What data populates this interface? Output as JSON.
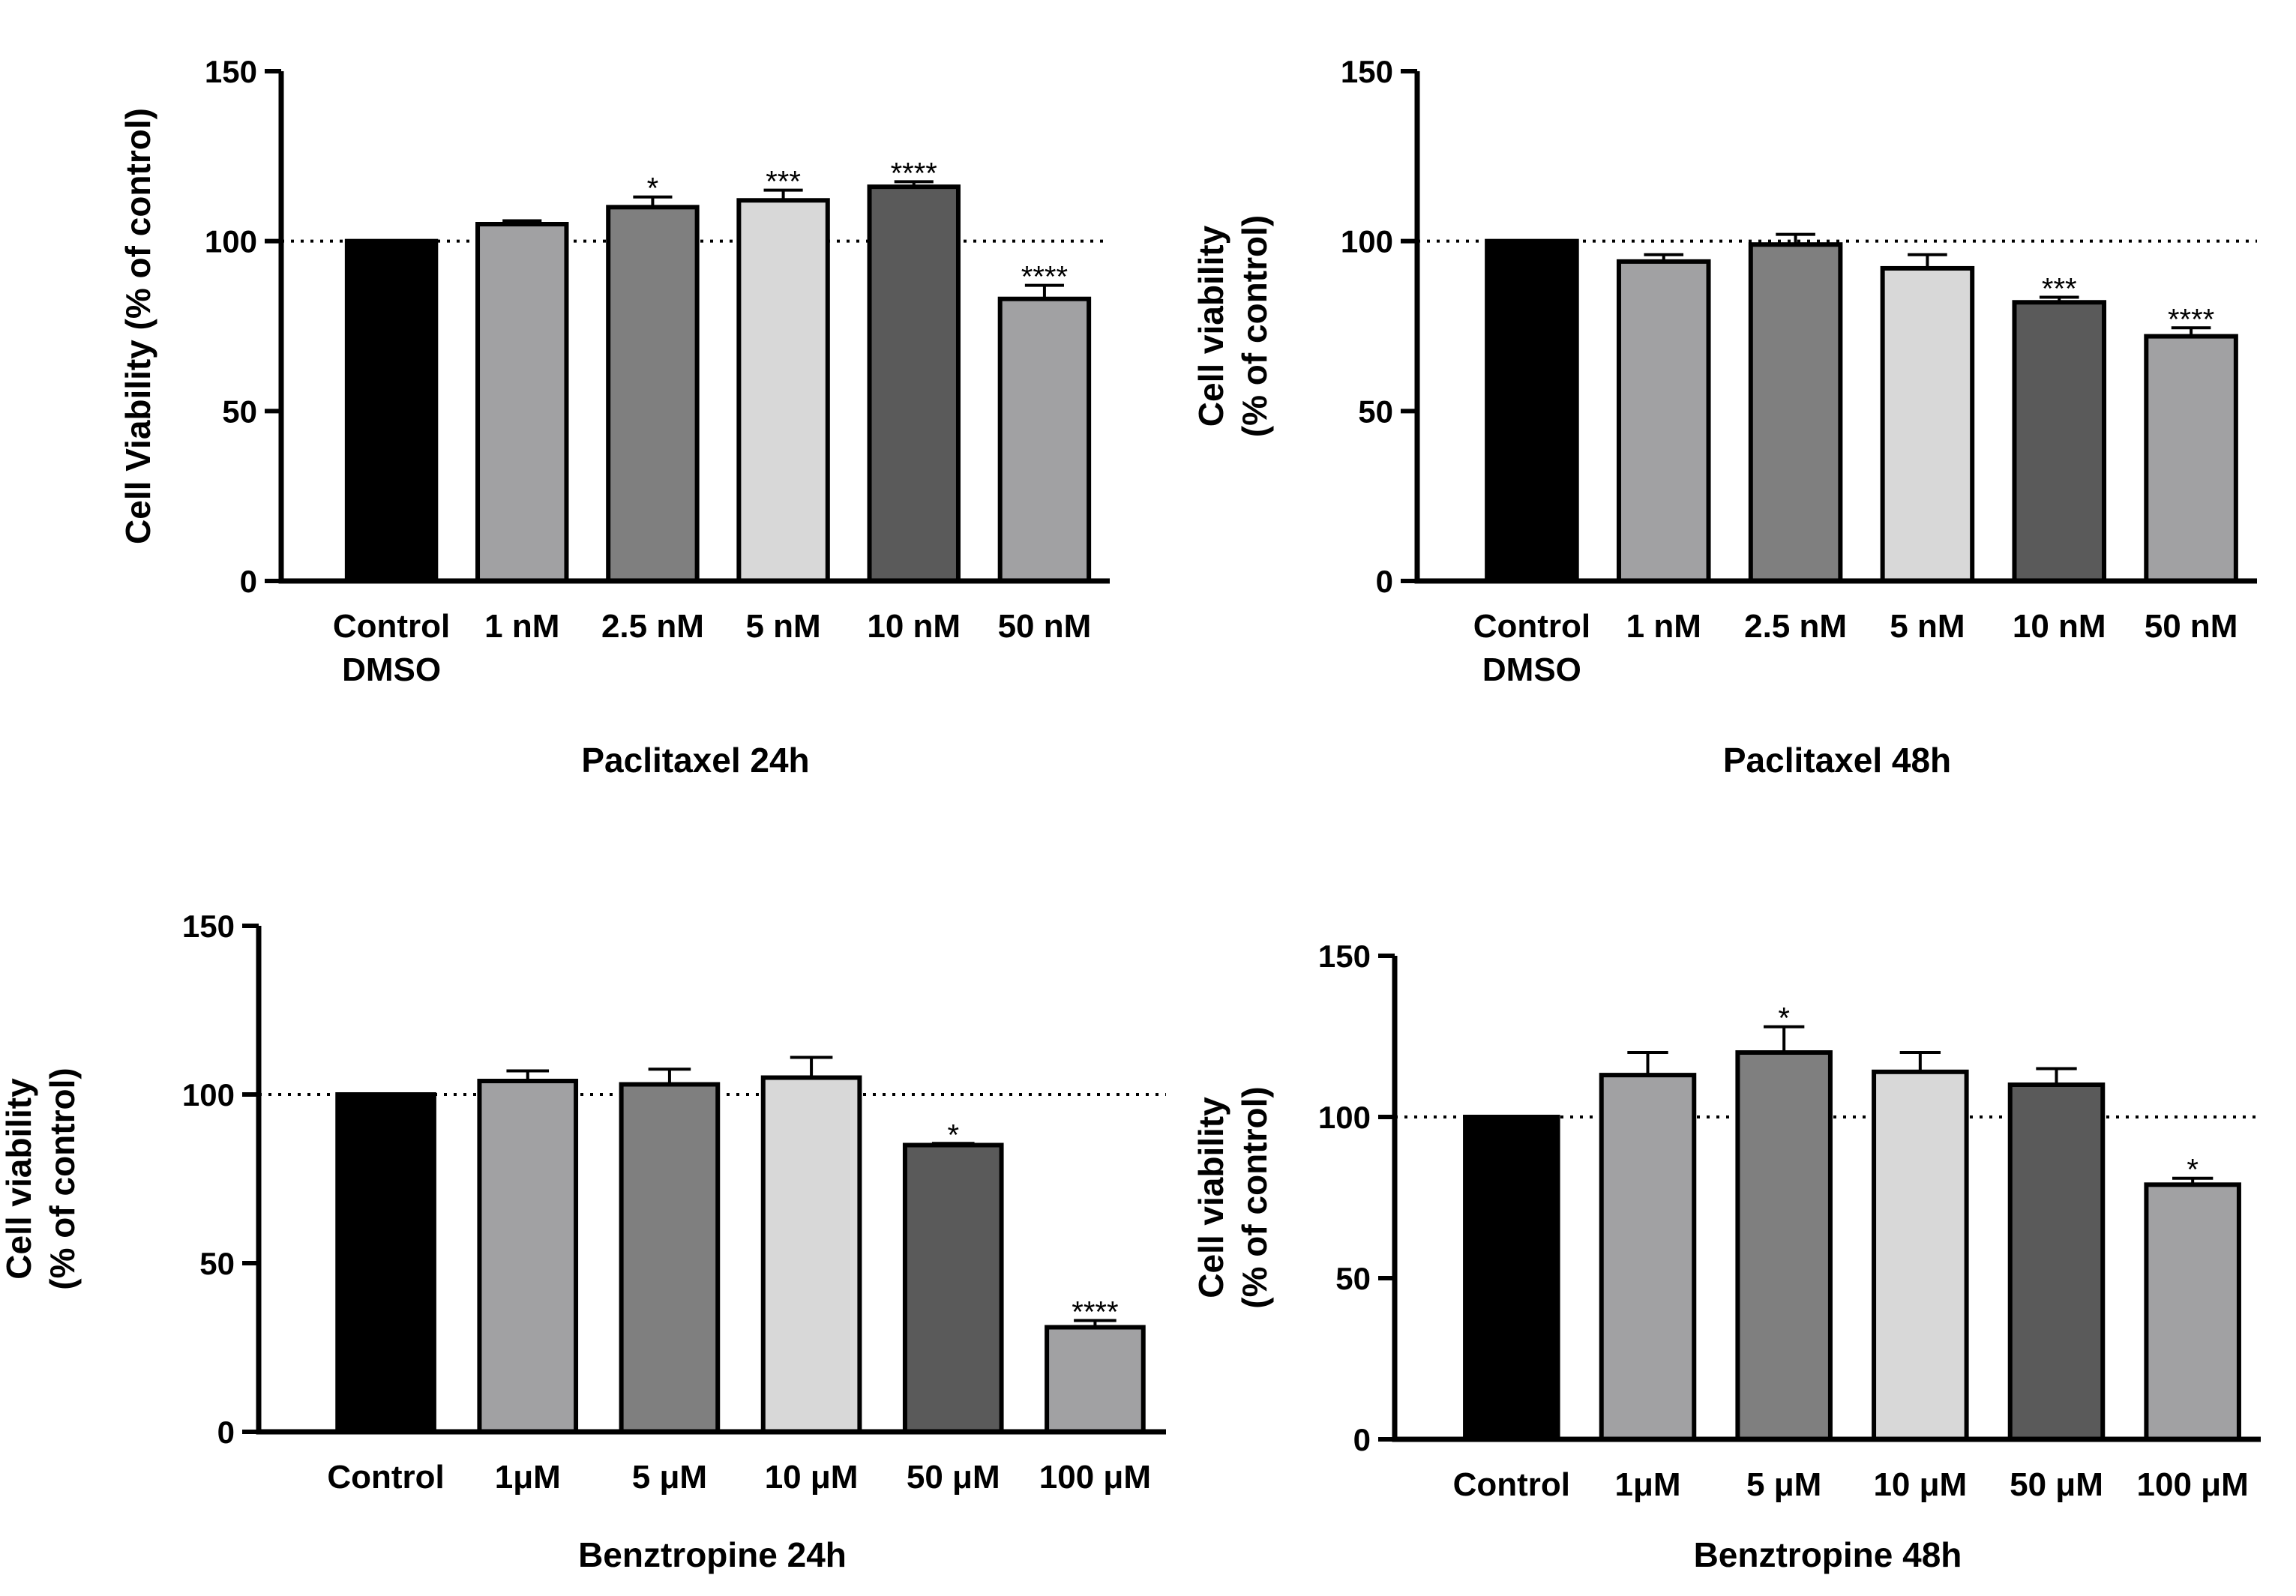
{
  "chart_data": [
    {
      "type": "bar",
      "title": "Paclitaxel 24h",
      "ylabel_lines": [
        "Cell Viability (% of control)"
      ],
      "xlabel": "",
      "ylim": [
        0,
        150
      ],
      "yticks": [
        "0",
        "50",
        "100",
        "150"
      ],
      "reference_line": 100,
      "categories": [
        [
          "Control",
          "DMSO"
        ],
        [
          "1 nM"
        ],
        [
          "2.5 nM"
        ],
        [
          "5 nM"
        ],
        [
          "10 nM"
        ],
        [
          "50 nM"
        ]
      ],
      "values": [
        100,
        105,
        110,
        112,
        116,
        83
      ],
      "errors": [
        0,
        1,
        3,
        3,
        1.5,
        4
      ],
      "significance": [
        "",
        "",
        "*",
        "***",
        "****",
        "****"
      ],
      "colors": [
        "#000000",
        "#a1a1a3",
        "#7f7f7f",
        "#d8d8d8",
        "#5a5a5a",
        "#a1a1a3"
      ]
    },
    {
      "type": "bar",
      "title": "Paclitaxel 48h",
      "ylabel_lines": [
        "Cell viability",
        "(% of control)"
      ],
      "xlabel": "",
      "ylim": [
        0,
        150
      ],
      "yticks": [
        "0",
        "50",
        "100",
        "150"
      ],
      "reference_line": 100,
      "categories": [
        [
          "Control",
          "DMSO"
        ],
        [
          "1 nM"
        ],
        [
          "2.5 nM"
        ],
        [
          "5 nM"
        ],
        [
          "10 nM"
        ],
        [
          "50 nM"
        ]
      ],
      "values": [
        100,
        94,
        99,
        92,
        82,
        72
      ],
      "errors": [
        0,
        2,
        3,
        4,
        1.5,
        2.5
      ],
      "significance": [
        "",
        "",
        "",
        "",
        "***",
        "****"
      ],
      "colors": [
        "#000000",
        "#a1a1a3",
        "#7f7f7f",
        "#d8d8d8",
        "#5a5a5a",
        "#a1a1a3"
      ]
    },
    {
      "type": "bar",
      "title": "Benztropine 24h",
      "ylabel_lines": [
        "Cell viability",
        "(% of control)"
      ],
      "xlabel": "",
      "ylim": [
        0,
        150
      ],
      "yticks": [
        "0",
        "50",
        "100",
        "150"
      ],
      "reference_line": 100,
      "categories": [
        [
          "Control"
        ],
        [
          "1μM"
        ],
        [
          "5 μM"
        ],
        [
          "10 μM"
        ],
        [
          "50 μM"
        ],
        [
          "100 μM"
        ]
      ],
      "values": [
        100,
        104,
        103,
        105,
        85,
        31
      ],
      "errors": [
        0,
        3,
        4.5,
        6,
        0.5,
        2
      ],
      "significance": [
        "",
        "",
        "",
        "",
        "*",
        "****"
      ],
      "colors": [
        "#000000",
        "#a1a1a3",
        "#7f7f7f",
        "#d8d8d8",
        "#5a5a5a",
        "#a1a1a3"
      ]
    },
    {
      "type": "bar",
      "title": "Benztropine 48h",
      "ylabel_lines": [
        "Cell viability",
        "(% of control)"
      ],
      "xlabel": "",
      "ylim": [
        0,
        150
      ],
      "yticks": [
        "0",
        "50",
        "100",
        "150"
      ],
      "reference_line": 100,
      "categories": [
        [
          "Control"
        ],
        [
          "1μM"
        ],
        [
          "5 μM"
        ],
        [
          "10 μM"
        ],
        [
          "50 μM"
        ],
        [
          "100 μM"
        ]
      ],
      "values": [
        100,
        113,
        120,
        114,
        110,
        79
      ],
      "errors": [
        0,
        7,
        8,
        6,
        5,
        2
      ],
      "significance": [
        "",
        "",
        "*",
        "",
        "",
        "*"
      ],
      "colors": [
        "#000000",
        "#a1a1a3",
        "#7f7f7f",
        "#d8d8d8",
        "#5a5a5a",
        "#a1a1a3"
      ]
    }
  ]
}
